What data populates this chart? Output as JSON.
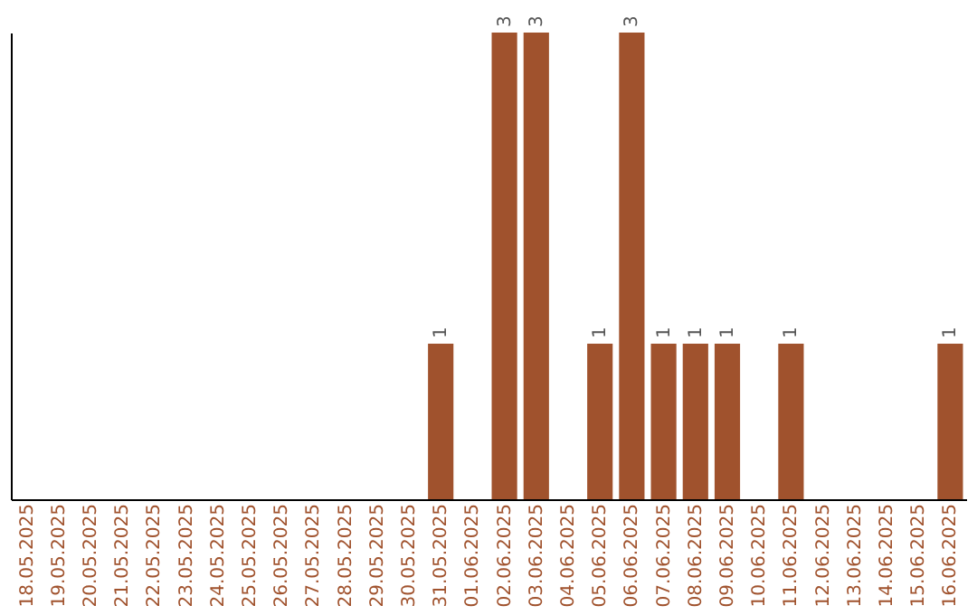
{
  "chart_data": {
    "type": "bar",
    "categories": [
      "18.05.2025",
      "19.05.2025",
      "20.05.2025",
      "21.05.2025",
      "22.05.2025",
      "23.05.2025",
      "24.05.2025",
      "25.05.2025",
      "26.05.2025",
      "27.05.2025",
      "28.05.2025",
      "29.05.2025",
      "30.05.2025",
      "31.05.2025",
      "01.06.2025",
      "02.06.2025",
      "03.06.2025",
      "04.06.2025",
      "05.06.2025",
      "06.06.2025",
      "07.06.2025",
      "08.06.2025",
      "09.06.2025",
      "10.06.2025",
      "11.06.2025",
      "12.06.2025",
      "13.06.2025",
      "14.06.2025",
      "15.06.2025",
      "16.06.2025"
    ],
    "values": [
      null,
      null,
      null,
      null,
      null,
      null,
      null,
      null,
      null,
      null,
      null,
      null,
      null,
      1,
      null,
      3,
      3,
      null,
      1,
      3,
      1,
      1,
      1,
      null,
      1,
      null,
      null,
      null,
      null,
      1
    ],
    "value_labels": [
      null,
      null,
      null,
      null,
      null,
      null,
      null,
      null,
      null,
      null,
      null,
      null,
      null,
      "1",
      null,
      "3",
      "3",
      null,
      "1",
      "3",
      "1",
      "1",
      "1",
      null,
      "1",
      null,
      null,
      null,
      null,
      "1"
    ],
    "color": "#a0522d",
    "tick_labels": "x",
    "grid": false
  }
}
